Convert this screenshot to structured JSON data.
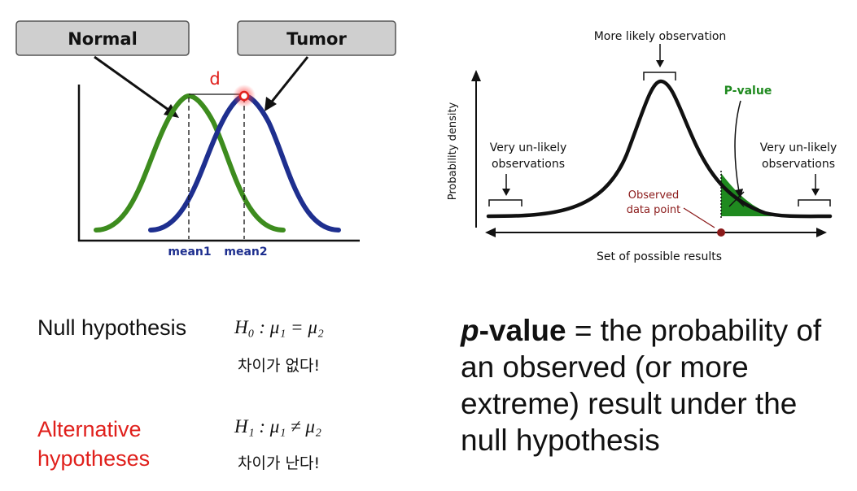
{
  "left_diagram": {
    "box_left": "Normal",
    "box_right": "Tumor",
    "d_label": "d",
    "mean1": "mean1",
    "mean2": "mean2",
    "colors": {
      "normal_curve": "#3d8c1e",
      "tumor_curve": "#1e2f8f",
      "d": "#e0201c"
    }
  },
  "right_diagram": {
    "top_label": "More likely observation",
    "pvalue_label": "P-value",
    "y_axis_label": "Probability density",
    "left_unlikely": [
      "Very un-likely",
      "observations"
    ],
    "right_unlikely": [
      "Very un-likely",
      "observations"
    ],
    "observed": [
      "Observed",
      "data point"
    ],
    "x_axis_label": "Set of possible results",
    "colors": {
      "pvalue": "#1f8a1f",
      "observed": "#8b1a1a"
    }
  },
  "hypotheses": {
    "null_label": "Null hypothesis",
    "null_eq": "H₀ : μ₁ = μ₂",
    "null_kr": "차이가 없다!",
    "alt_label": "Alternative hypotheses",
    "alt_eq": "H₁ : μ₁ ≠ μ₂",
    "alt_kr": "차이가 난다!"
  },
  "definition": {
    "p_italic": "p",
    "value_bold": "-value",
    "rest": " = the probability of an observed (or more extreme) result under the null hypothesis"
  }
}
